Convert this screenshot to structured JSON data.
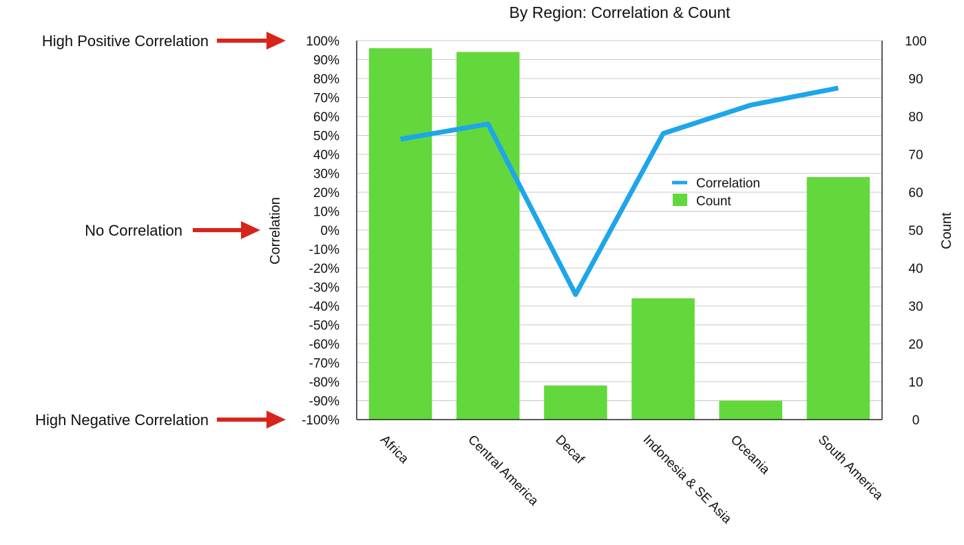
{
  "chart_data": {
    "type": "bar",
    "title": "By Region: Correlation & Count",
    "categories": [
      "Africa",
      "Central America",
      "Decaf",
      "Indonesia & SE Asia",
      "Oceania",
      "South America"
    ],
    "series": [
      {
        "name": "Count",
        "type": "bar",
        "axis": "right",
        "values": [
          98,
          97,
          9,
          32,
          5,
          64
        ]
      },
      {
        "name": "Correlation",
        "type": "line",
        "axis": "left",
        "values": [
          0.48,
          0.56,
          -0.34,
          0.51,
          0.66,
          0.75
        ]
      }
    ],
    "left_axis": {
      "label": "Correlation",
      "range": [
        -1,
        1
      ],
      "step": 0.1,
      "ticks": [
        "100%",
        "90%",
        "80%",
        "70%",
        "60%",
        "50%",
        "40%",
        "30%",
        "20%",
        "10%",
        "0%",
        "-10%",
        "-20%",
        "-30%",
        "-40%",
        "-50%",
        "-60%",
        "-70%",
        "-80%",
        "-90%",
        "-100%"
      ]
    },
    "right_axis": {
      "label": "Count",
      "range": [
        0,
        100
      ],
      "step": 10,
      "ticks": [
        "100",
        "90",
        "80",
        "70",
        "60",
        "50",
        "40",
        "30",
        "20",
        "10",
        "0"
      ]
    },
    "grid": true,
    "legend": {
      "placement": "center-right",
      "items": [
        "Correlation",
        "Count"
      ]
    },
    "annotations": [
      {
        "text": "High Positive Correlation",
        "at": 1
      },
      {
        "text": "No Correlation",
        "at": 0
      },
      {
        "text": "High Negative Correlation",
        "at": -1
      }
    ],
    "colors": {
      "bar": "#63d83c",
      "line": "#1da6ea",
      "arrow": "#d8251c",
      "grid": "#c8c8c8"
    }
  }
}
